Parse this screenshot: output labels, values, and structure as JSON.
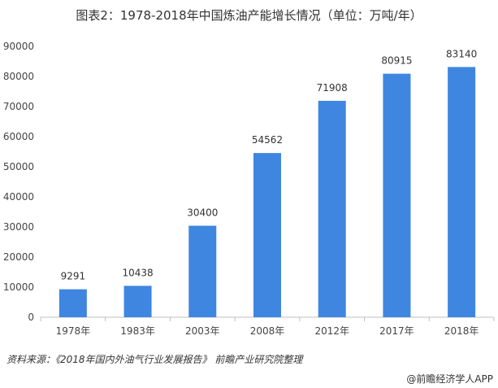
{
  "chart_data": {
    "type": "bar",
    "title": "图表2：1978-2018年中国炼油产能增长情况（单位：万吨/年）",
    "categories": [
      "1978年",
      "1983年",
      "2003年",
      "2008年",
      "2012年",
      "2017年",
      "2018年"
    ],
    "values": [
      9291,
      10438,
      30400,
      54562,
      71908,
      80915,
      83140
    ],
    "ylim": [
      0,
      90000
    ],
    "yticks": [
      0,
      10000,
      20000,
      30000,
      40000,
      50000,
      60000,
      70000,
      80000,
      90000
    ],
    "xlabel": "",
    "ylabel": "",
    "grid": false,
    "bar_color": "#3f86e0"
  },
  "source": "资料来源：《2018年国内外油气行业发展报告》 前瞻产业研究院整理",
  "brand": "@前瞻经济学人APP"
}
